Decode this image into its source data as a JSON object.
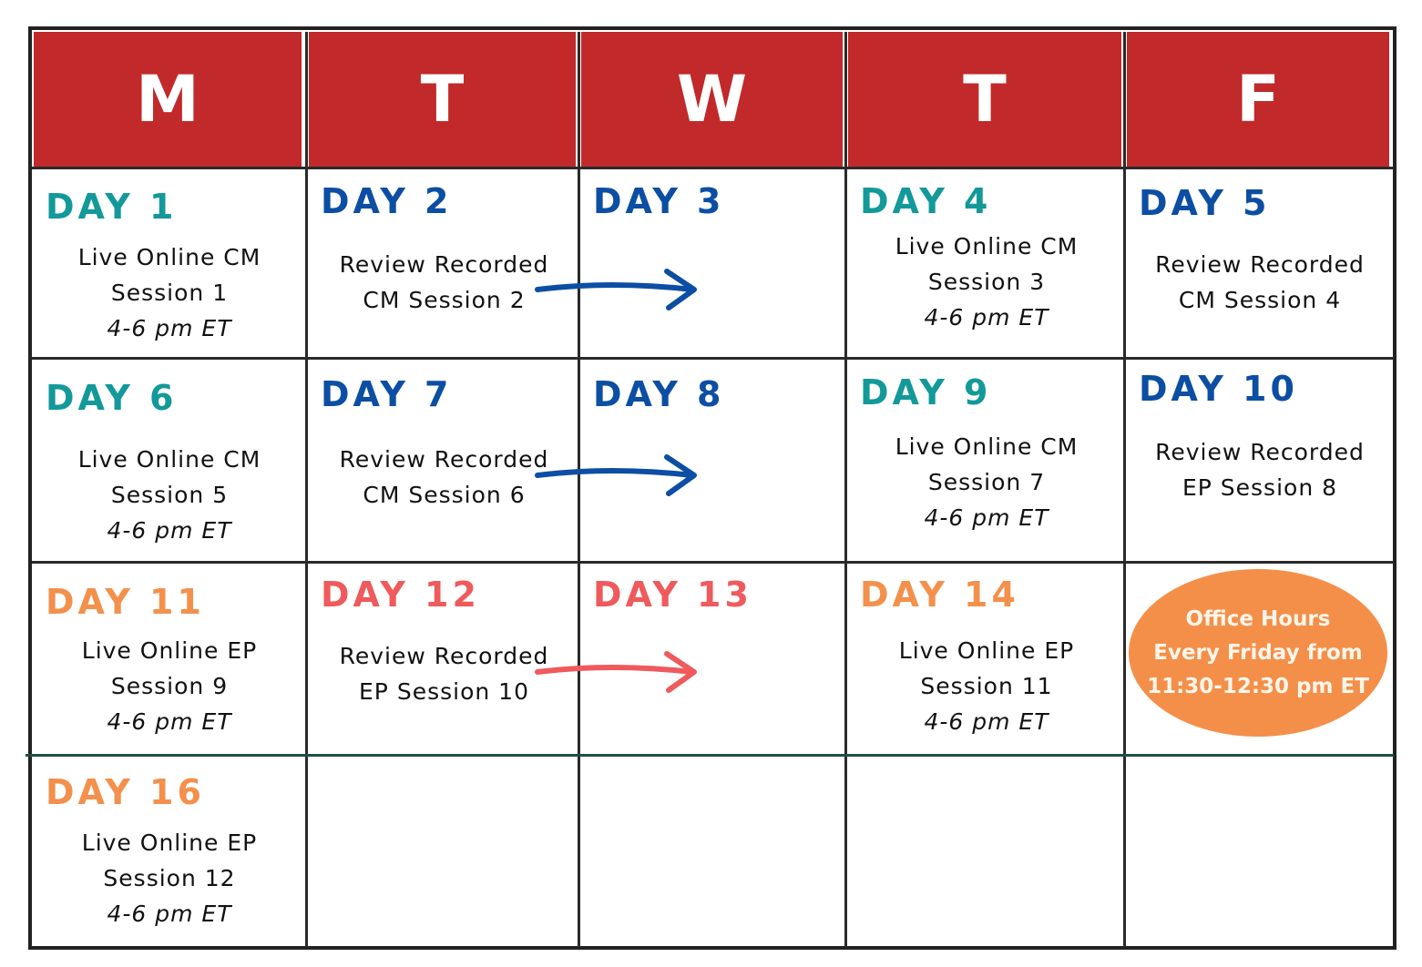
{
  "headers": [
    "M",
    "T",
    "W",
    "T",
    "F"
  ],
  "colors": {
    "header_red": "#c1292a",
    "teal": "#13999a",
    "blue": "#0c4ea3",
    "orange": "#f3904c",
    "coral": "#ef5a5c",
    "divider_green": "#1f4d45"
  },
  "cells": [
    {
      "day": "DAY 1",
      "color": "teal",
      "lines": [
        "Live Online CM",
        "Session 1"
      ],
      "time": "4-6 pm ET"
    },
    {
      "day": "DAY 2",
      "color": "blue",
      "lines": [
        "Review Recorded",
        "CM Session 2"
      ]
    },
    {
      "day": "DAY 3",
      "color": "blue",
      "lines": []
    },
    {
      "day": "DAY 4",
      "color": "teal",
      "lines": [
        "Live  Online CM",
        "Session 3"
      ],
      "time": "4-6 pm ET"
    },
    {
      "day": "DAY 5",
      "color": "blue",
      "lines": [
        "Review Recorded",
        "CM Session 4"
      ]
    },
    {
      "day": "DAY 6",
      "color": "teal",
      "lines": [
        "Live Online CM",
        "Session 5"
      ],
      "time": "4-6 pm ET"
    },
    {
      "day": "DAY 7",
      "color": "blue",
      "lines": [
        "Review Recorded",
        "CM Session 6"
      ]
    },
    {
      "day": "DAY 8",
      "color": "blue",
      "lines": []
    },
    {
      "day": "DAY 9",
      "color": "teal",
      "lines": [
        "Live Online CM",
        "Session 7"
      ],
      "time": "4-6 pm ET"
    },
    {
      "day": "DAY 10",
      "color": "blue",
      "lines": [
        "Review Recorded",
        "EP Session 8"
      ]
    },
    {
      "day": "DAY 11",
      "color": "orange",
      "lines": [
        "Live Online EP",
        "Session 9"
      ],
      "time": "4-6 pm ET"
    },
    {
      "day": "DAY 12",
      "color": "coral",
      "lines": [
        "Review Recorded",
        "EP Session 10"
      ]
    },
    {
      "day": "DAY 13",
      "color": "coral",
      "lines": []
    },
    {
      "day": "DAY 14",
      "color": "orange",
      "lines": [
        "Live Online EP",
        "Session 11"
      ],
      "time": "4-6 pm ET"
    },
    null,
    {
      "day": "DAY 16",
      "color": "orange",
      "lines": [
        "Live Online EP",
        "Session 12"
      ],
      "time": "4-6 pm ET"
    },
    null,
    null,
    null,
    null
  ],
  "office_hours": {
    "lines": [
      "Office Hours",
      "Every Friday from",
      "11:30-12:30 pm ET"
    ]
  },
  "arrows": [
    {
      "from_day": "DAY 2",
      "to_day": "DAY 3",
      "color": "blue"
    },
    {
      "from_day": "DAY 7",
      "to_day": "DAY 8",
      "color": "blue"
    },
    {
      "from_day": "DAY 12",
      "to_day": "DAY 13",
      "color": "coral"
    }
  ]
}
